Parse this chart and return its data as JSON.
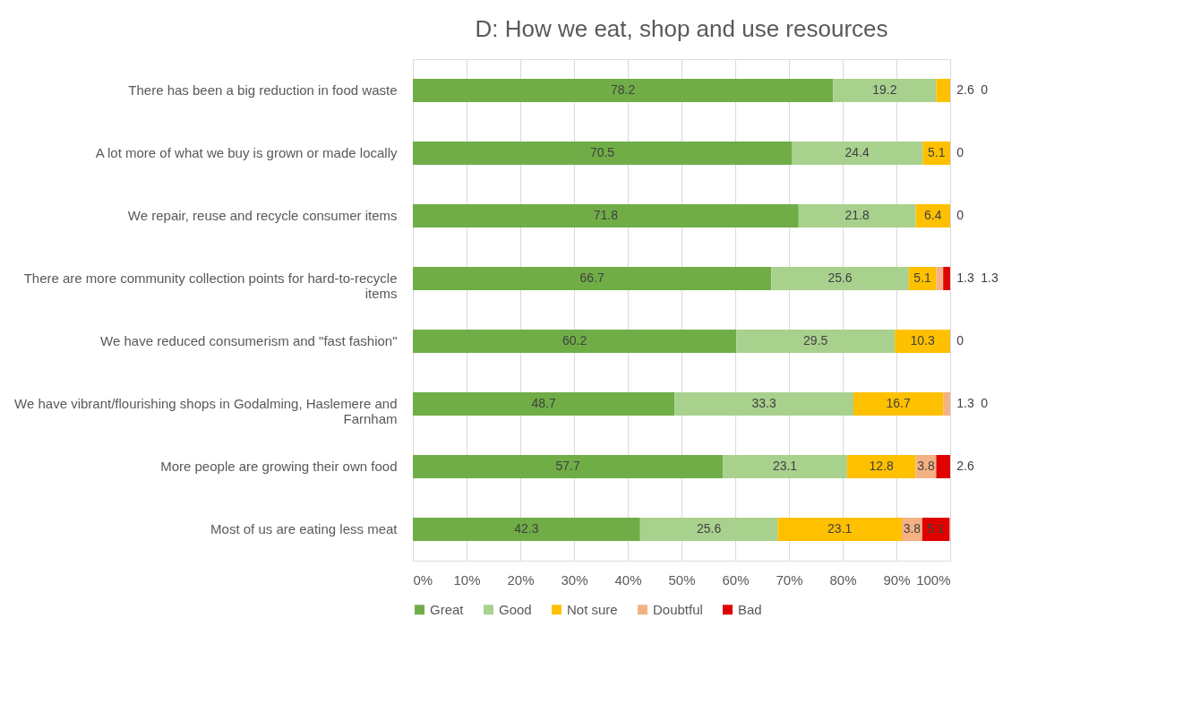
{
  "chart_data": {
    "type": "bar",
    "orientation": "horizontal",
    "stacked": true,
    "title": "D: How we eat, shop and use resources",
    "categories": [
      "There has been a big reduction in food waste",
      "A lot more of what we buy is grown or made locally",
      "We repair, reuse and recycle consumer items",
      "There are more community collection points for hard-to-recycle items",
      "We have reduced consumerism and \"fast fashion\"",
      "We have vibrant/flourishing shops in Godalming, Haslemere and Farnham",
      "More people are growing their own food",
      "Most of us are eating less meat"
    ],
    "series": [
      {
        "name": "Great",
        "color": "#70ad47",
        "values": [
          78.2,
          70.5,
          71.8,
          66.7,
          60.2,
          48.7,
          57.7,
          42.3
        ]
      },
      {
        "name": "Good",
        "color": "#a9d18e",
        "values": [
          19.2,
          24.4,
          21.8,
          25.6,
          29.5,
          33.3,
          23.1,
          25.6
        ]
      },
      {
        "name": "Not sure",
        "color": "#ffc000",
        "values": [
          2.6,
          5.1,
          6.4,
          5.1,
          10.3,
          16.7,
          12.8,
          23.1
        ]
      },
      {
        "name": "Doubtful",
        "color": "#f4b183",
        "values": [
          0,
          0,
          0,
          1.3,
          0,
          1.3,
          3.8,
          3.8
        ]
      },
      {
        "name": "Bad",
        "color": "#e00000",
        "values": [
          0,
          0,
          0,
          1.3,
          0,
          0,
          2.6,
          5.1
        ]
      }
    ],
    "xlim": [
      0,
      100
    ],
    "xticks": [
      {
        "value": 0,
        "label": "0%"
      },
      {
        "value": 10,
        "label": "10%"
      },
      {
        "value": 20,
        "label": "20%"
      },
      {
        "value": 30,
        "label": "30%"
      },
      {
        "value": 40,
        "label": "40%"
      },
      {
        "value": 50,
        "label": "50%"
      },
      {
        "value": 60,
        "label": "60%"
      },
      {
        "value": 70,
        "label": "70%"
      },
      {
        "value": 80,
        "label": "80%"
      },
      {
        "value": 90,
        "label": "90%"
      },
      {
        "value": 100,
        "label": "100%"
      }
    ],
    "value_labels": [
      [
        "78.2",
        "70.5",
        "71.8",
        "66.7",
        "60.2",
        "48.7",
        "57.7",
        "42.3"
      ],
      [
        "19.2",
        "24.4",
        "21.8",
        "25.6",
        "29.5",
        "33.3",
        "23.1",
        "25.6"
      ],
      [
        "2.6",
        "5.1",
        "6.4",
        "5.1",
        "10.3",
        "16.7",
        "12.8",
        "23.1"
      ],
      [
        null,
        null,
        null,
        "1.3",
        null,
        "1.3",
        "3.8",
        "3.8"
      ],
      [
        "0",
        "0",
        "0",
        "1.3",
        "0",
        "0",
        "2.6",
        "5.1"
      ]
    ],
    "grid": "x",
    "legend": "bottom"
  }
}
